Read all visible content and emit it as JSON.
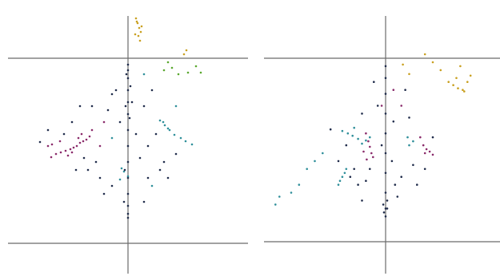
{
  "chart_data": [
    {
      "type": "scatter",
      "title": "",
      "xlabel": "",
      "ylabel": "",
      "xlim": [
        -150,
        150
      ],
      "ylim": [
        -240,
        120
      ],
      "grid": false,
      "legend": "none",
      "series": [
        {
          "color": "#c9a020",
          "points": [
            [
              10,
              50
            ],
            [
              12,
              44
            ],
            [
              14,
              38
            ],
            [
              16,
              33
            ],
            [
              13,
              28
            ],
            [
              15,
              22
            ],
            [
              11,
              46
            ],
            [
              17,
              40
            ],
            [
              24,
              100
            ],
            [
              27,
              96
            ],
            [
              73,
              10
            ],
            [
              70,
              5
            ],
            [
              9,
              30
            ]
          ]
        },
        {
          "color": "#5aa82e",
          "points": [
            [
              55,
              -12
            ],
            [
              63,
              -20
            ],
            [
              75,
              -18
            ],
            [
              91,
              -18
            ],
            [
              85,
              -10
            ],
            [
              50,
              -5
            ],
            [
              45,
              -15
            ]
          ]
        },
        {
          "color": "#2f8f9a",
          "points": [
            [
              40,
              -78
            ],
            [
              46,
              -84
            ],
            [
              52,
              -90
            ],
            [
              58,
              -96
            ],
            [
              66,
              -100
            ],
            [
              72,
              -104
            ],
            [
              80,
              -108
            ],
            [
              44,
              -80
            ],
            [
              50,
              -88
            ],
            [
              -8,
              -138
            ],
            [
              -5,
              -142
            ],
            [
              0,
              -148
            ],
            [
              -10,
              -152
            ],
            [
              60,
              -60
            ],
            [
              20,
              -20
            ],
            [
              -20,
              -100
            ],
            [
              30,
              -160
            ]
          ]
        },
        {
          "color": "#8a2a6a",
          "points": [
            [
              -48,
              -98
            ],
            [
              -52,
              -102
            ],
            [
              -56,
              -104
            ],
            [
              -60,
              -106
            ],
            [
              -64,
              -110
            ],
            [
              -68,
              -112
            ],
            [
              -72,
              -114
            ],
            [
              -78,
              -116
            ],
            [
              -84,
              -118
            ],
            [
              -90,
              -120
            ],
            [
              -96,
              -124
            ],
            [
              -75,
              -122
            ],
            [
              -70,
              -118
            ],
            [
              -62,
              -100
            ],
            [
              -58,
              -95
            ],
            [
              -45,
              -90
            ],
            [
              -30,
              -80
            ],
            [
              -35,
              -110
            ],
            [
              -95,
              -108
            ],
            [
              -100,
              -110
            ],
            [
              -85,
              -104
            ]
          ]
        },
        {
          "color": "#1f2b4a",
          "points": [
            [
              0,
              -8
            ],
            [
              0,
              -15
            ],
            [
              0,
              -25
            ],
            [
              0,
              -40
            ],
            [
              0,
              -55
            ],
            [
              0,
              -70
            ],
            [
              0,
              -90
            ],
            [
              0,
              -110
            ],
            [
              0,
              -130
            ],
            [
              0,
              -150
            ],
            [
              0,
              -170
            ],
            [
              0,
              -185
            ],
            [
              0,
              -195
            ],
            [
              0,
              -200
            ],
            [
              -2,
              -20
            ],
            [
              3,
              -35
            ],
            [
              -3,
              -60
            ],
            [
              2,
              -75
            ],
            [
              -4,
              -140
            ],
            [
              -60,
              -60
            ],
            [
              -80,
              -95
            ],
            [
              -100,
              -90
            ],
            [
              -110,
              -105
            ],
            [
              -40,
              -130
            ],
            [
              -20,
              -160
            ],
            [
              -35,
              -150
            ],
            [
              25,
              -150
            ],
            [
              40,
              -140
            ],
            [
              60,
              -120
            ],
            [
              20,
              -60
            ],
            [
              -15,
              -40
            ],
            [
              30,
              -40
            ],
            [
              -70,
              -80
            ],
            [
              -50,
              -140
            ],
            [
              -30,
              -170
            ],
            [
              20,
              -180
            ],
            [
              45,
              -130
            ],
            [
              -10,
              -80
            ],
            [
              10,
              -95
            ],
            [
              -25,
              -65
            ],
            [
              35,
              -95
            ],
            [
              -45,
              -60
            ],
            [
              15,
              -125
            ],
            [
              -5,
              -180
            ],
            [
              -20,
              -45
            ],
            [
              5,
              -55
            ],
            [
              -55,
              -125
            ],
            [
              25,
              -110
            ],
            [
              50,
              -150
            ],
            [
              -65,
              -140
            ]
          ]
        }
      ]
    },
    {
      "type": "scatter",
      "title": "",
      "xlabel": "",
      "ylabel": "",
      "xlim": [
        -150,
        150
      ],
      "ylim": [
        -240,
        120
      ],
      "grid": false,
      "legend": "none",
      "series": [
        {
          "color": "#c9a020",
          "points": [
            [
              80,
              -30
            ],
            [
              86,
              -34
            ],
            [
              92,
              -38
            ],
            [
              98,
              -40
            ],
            [
              104,
              -30
            ],
            [
              108,
              -22
            ],
            [
              100,
              -42
            ],
            [
              90,
              -25
            ],
            [
              70,
              -15
            ],
            [
              60,
              -5
            ],
            [
              95,
              -10
            ],
            [
              50,
              5
            ],
            [
              30,
              -20
            ],
            [
              22,
              -8
            ]
          ]
        },
        {
          "color": "#2f8f9a",
          "points": [
            [
              -55,
              -92
            ],
            [
              -48,
              -95
            ],
            [
              -42,
              -98
            ],
            [
              -35,
              -102
            ],
            [
              -25,
              -104
            ],
            [
              -20,
              -100
            ],
            [
              -30,
              -108
            ],
            [
              -40,
              -88
            ],
            [
              -50,
              -140
            ],
            [
              -52,
              -145
            ],
            [
              -55,
              -150
            ],
            [
              -58,
              -155
            ],
            [
              -60,
              -160
            ],
            [
              30,
              -110
            ],
            [
              35,
              -105
            ],
            [
              28,
              -100
            ],
            [
              -80,
              -120
            ],
            [
              -100,
              -140
            ],
            [
              -120,
              -170
            ],
            [
              -135,
              -175
            ],
            [
              -140,
              -185
            ],
            [
              -110,
              -160
            ],
            [
              -90,
              -130
            ]
          ]
        },
        {
          "color": "#8a2a6a",
          "points": [
            [
              -25,
              -95
            ],
            [
              -22,
              -105
            ],
            [
              -20,
              -112
            ],
            [
              -18,
              -120
            ],
            [
              -16,
              -125
            ],
            [
              -24,
              -128
            ],
            [
              -28,
              -118
            ],
            [
              48,
              -110
            ],
            [
              52,
              -115
            ],
            [
              56,
              -118
            ],
            [
              60,
              -122
            ],
            [
              50,
              -120
            ],
            [
              44,
              -100
            ],
            [
              20,
              -60
            ],
            [
              10,
              -40
            ],
            [
              -5,
              -60
            ]
          ]
        },
        {
          "color": "#1f2b4a",
          "points": [
            [
              0,
              -10
            ],
            [
              0,
              -25
            ],
            [
              0,
              -45
            ],
            [
              0,
              -70
            ],
            [
              0,
              -95
            ],
            [
              0,
              -120
            ],
            [
              0,
              -145
            ],
            [
              0,
              -170
            ],
            [
              0,
              -190
            ],
            [
              0,
              -200
            ],
            [
              2,
              -180
            ],
            [
              -3,
              -185
            ],
            [
              2,
              -190
            ],
            [
              -2,
              -195
            ],
            [
              -10,
              -60
            ],
            [
              10,
              -80
            ],
            [
              -30,
              -70
            ],
            [
              -40,
              -140
            ],
            [
              -35,
              -160
            ],
            [
              -30,
              -180
            ],
            [
              -45,
              -150
            ],
            [
              -60,
              -130
            ],
            [
              20,
              -150
            ],
            [
              35,
              -135
            ],
            [
              40,
              -160
            ],
            [
              15,
              -175
            ],
            [
              25,
              -40
            ],
            [
              -15,
              -30
            ],
            [
              -5,
              -110
            ],
            [
              8,
              -130
            ],
            [
              -20,
              -140
            ],
            [
              50,
              -140
            ],
            [
              60,
              -100
            ],
            [
              -50,
              -110
            ],
            [
              -70,
              -90
            ],
            [
              30,
              -75
            ],
            [
              -25,
              -155
            ],
            [
              12,
              -160
            ]
          ]
        }
      ]
    }
  ]
}
